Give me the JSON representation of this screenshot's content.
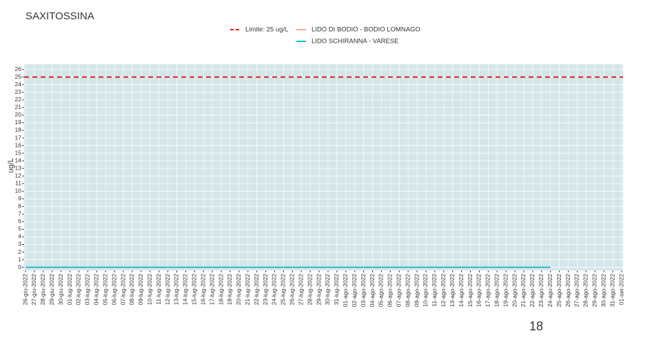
{
  "chart_data": {
    "type": "line",
    "title": "SAXITOSSINA",
    "y_label": "ug/L",
    "categories": [
      "26-giu-2022",
      "27-giu-2022",
      "28-giu-2022",
      "29-giu-2022",
      "30-giu-2022",
      "01-lug-2022",
      "02-lug-2022",
      "03-lug-2022",
      "04-lug-2022",
      "05-lug-2022",
      "06-lug-2022",
      "07-lug-2022",
      "08-lug-2022",
      "09-lug-2022",
      "10-lug-2022",
      "11-lug-2022",
      "12-lug-2022",
      "13-lug-2022",
      "14-lug-2022",
      "15-lug-2022",
      "16-lug-2022",
      "17-lug-2022",
      "18-lug-2022",
      "19-lug-2022",
      "20-lug-2022",
      "21-lug-2022",
      "22-lug-2022",
      "23-lug-2022",
      "24-lug-2022",
      "25-lug-2022",
      "26-lug-2022",
      "27-lug-2022",
      "28-lug-2022",
      "29-lug-2022",
      "30-lug-2022",
      "31-lug-2022",
      "01-ago-2022",
      "02-ago-2022",
      "03-ago-2022",
      "04-ago-2022",
      "05-ago-2022",
      "06-ago-2022",
      "07-ago-2022",
      "08-ago-2022",
      "09-ago-2022",
      "10-ago-2022",
      "11-ago-2022",
      "12-ago-2022",
      "13-ago-2022",
      "14-ago-2022",
      "15-ago-2022",
      "16-ago-2022",
      "17-ago-2022",
      "18-ago-2022",
      "19-ago-2022",
      "20-ago-2022",
      "21-ago-2022",
      "22-ago-2022",
      "23-ago-2022",
      "24-ago-2022",
      "25-ago-2022",
      "26-ago-2022",
      "27-ago-2022",
      "28-ago-2022",
      "29-ago-2022",
      "30-ago-2022",
      "31-ago-2022",
      "01-set-2022"
    ],
    "series": [
      {
        "name": "LIDO DI BODIO - BODIO LOMNAGO",
        "color": "#f8a39c",
        "values": [
          0,
          0,
          0,
          0,
          0,
          0,
          0,
          0,
          0,
          0,
          0,
          0,
          0,
          0,
          0,
          0,
          0,
          0,
          0,
          0,
          0,
          0,
          0,
          0,
          0,
          0,
          0,
          0,
          0,
          0,
          0,
          0,
          0,
          0,
          0,
          0,
          0,
          0,
          0,
          0,
          0,
          0,
          0,
          0,
          0,
          0,
          0,
          0,
          0,
          0,
          0,
          0,
          0,
          0,
          0,
          0,
          0,
          0,
          0,
          0,
          null,
          null,
          null,
          null,
          null,
          null,
          null,
          null
        ]
      },
      {
        "name": "LIDO SCHIRANNA - VARESE",
        "color": "#00bfc4",
        "values": [
          0,
          0,
          0,
          0,
          0,
          0,
          0,
          0,
          0,
          0,
          0,
          0,
          0,
          0,
          0,
          0,
          0,
          0,
          0,
          0,
          0,
          0,
          0,
          0,
          0,
          0,
          0,
          0,
          0,
          0,
          0,
          0,
          0,
          0,
          0,
          0,
          0,
          0,
          0,
          0,
          0,
          0,
          0,
          0,
          0,
          0,
          0,
          0,
          0,
          0,
          0,
          0,
          0,
          0,
          0,
          0,
          0,
          0,
          0,
          0,
          null,
          null,
          null,
          null,
          null,
          null,
          null,
          null
        ]
      }
    ],
    "reference_line": {
      "name": "Limite: 25 ug/L",
      "value": 25,
      "color": "#e41a1c"
    },
    "ylim": [
      -0.4,
      26.7
    ],
    "yticks": [
      0,
      1,
      2,
      3,
      4,
      5,
      6,
      7,
      8,
      9,
      10,
      11,
      12,
      13,
      14,
      15,
      16,
      17,
      18,
      19,
      20,
      21,
      22,
      23,
      24,
      25,
      26
    ],
    "grid": true
  },
  "page_number": "18"
}
